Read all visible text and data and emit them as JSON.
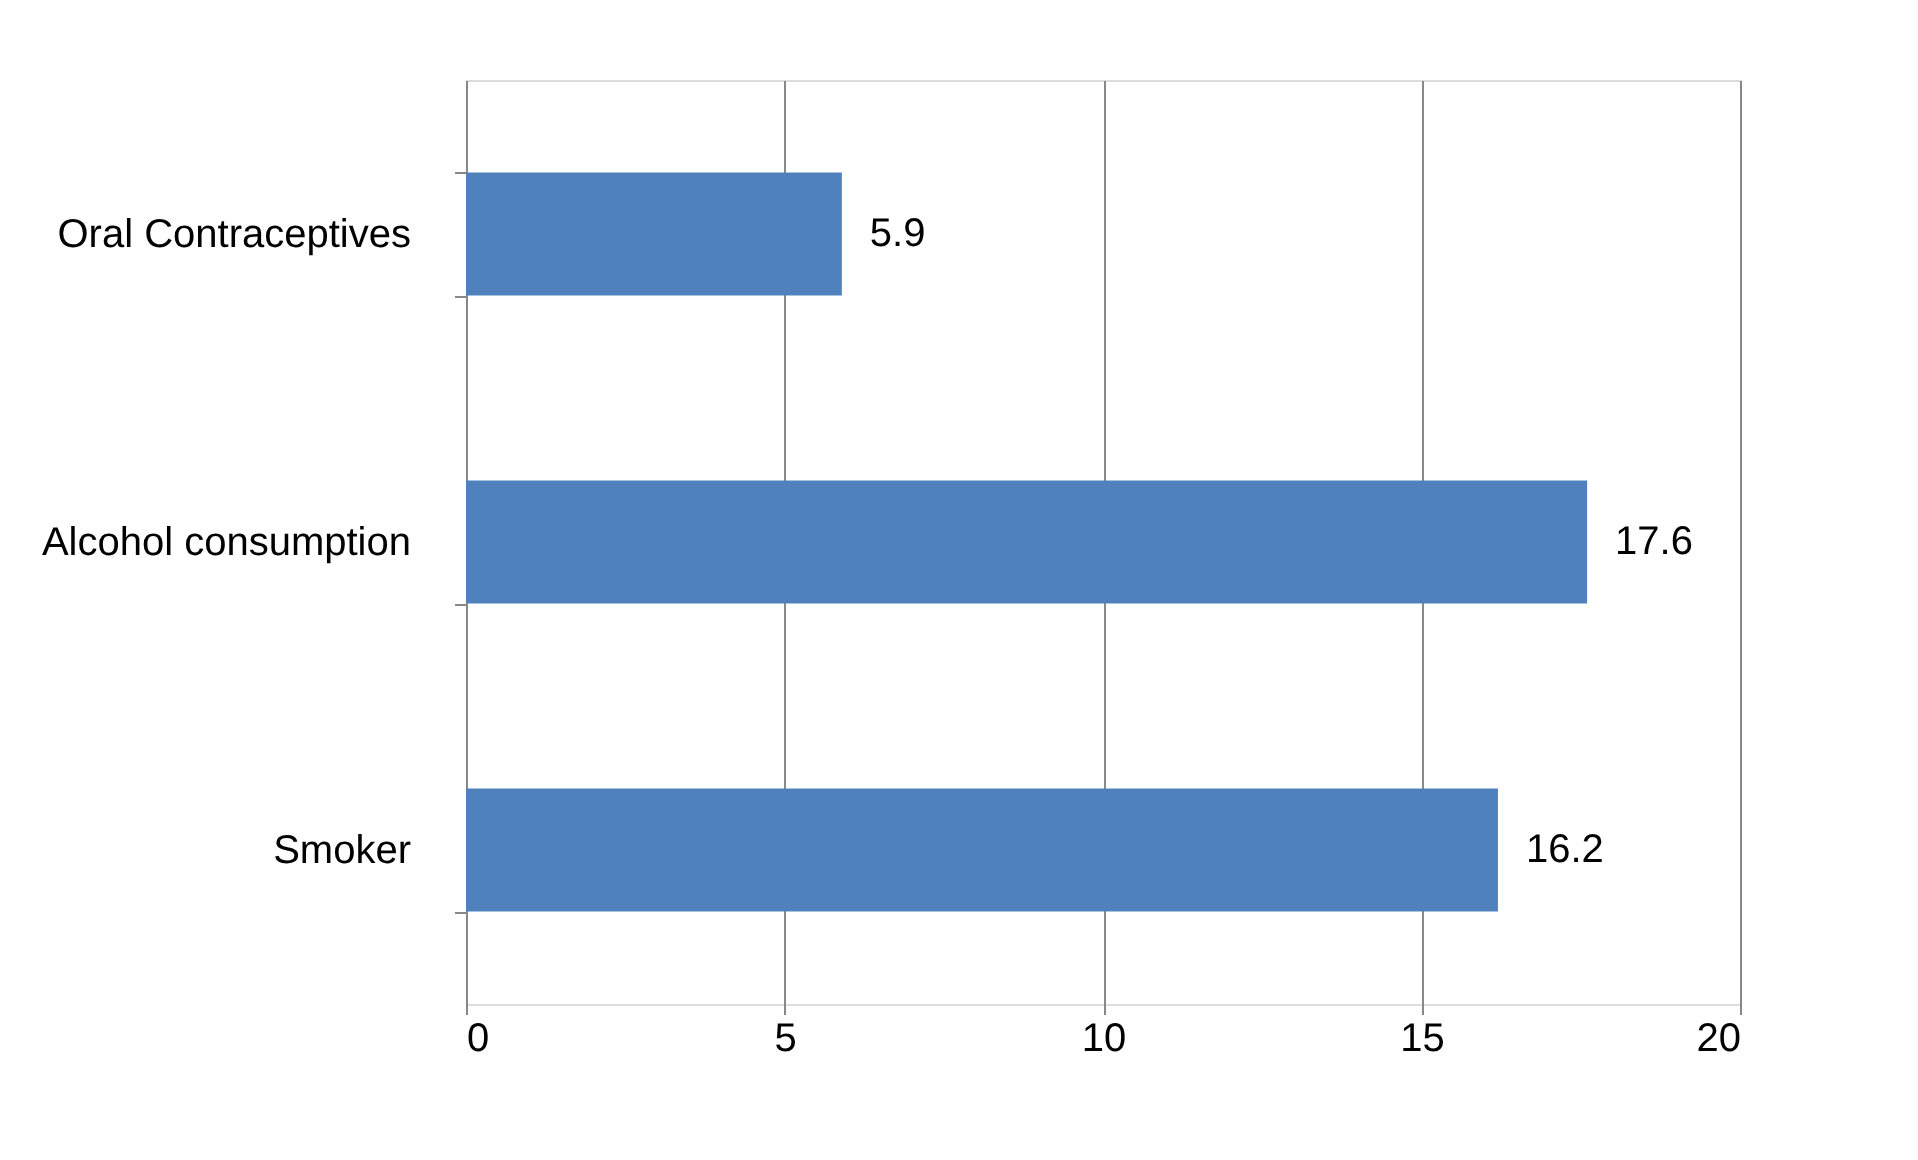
{
  "chart_data": {
    "type": "bar",
    "orientation": "horizontal",
    "categories": [
      "Oral Contraceptives",
      "Alcohol consumption",
      "Smoker"
    ],
    "values": [
      5.9,
      17.6,
      16.2
    ],
    "color": "#4f81bd",
    "xlim": [
      0,
      20
    ],
    "xticks": [
      0,
      5,
      10,
      15,
      20
    ],
    "grid": "x",
    "data_labels": true
  }
}
